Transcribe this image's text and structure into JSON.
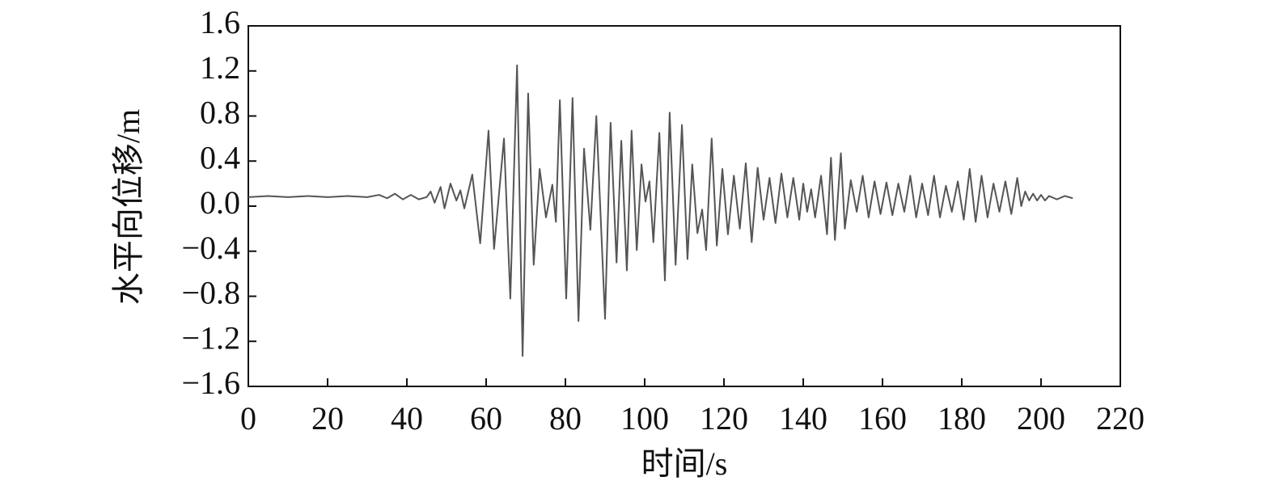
{
  "chart_data": {
    "type": "line",
    "xlabel": "时间/s",
    "ylabel": "水平向位移/m",
    "xlim": [
      0,
      220
    ],
    "xticks": [
      0,
      20,
      40,
      60,
      80,
      100,
      120,
      140,
      160,
      180,
      200,
      220
    ],
    "ylim": [
      -1.6,
      1.6
    ],
    "yticks": [
      1.6,
      1.2,
      0.8,
      0.4,
      {
        "value": 0,
        "label": "0.0"
      },
      {
        "value": -0.4,
        "label": "−0.4"
      },
      {
        "value": -0.8,
        "label": "−0.8"
      },
      {
        "value": -1.2,
        "label": "−1.2"
      },
      {
        "value": -1.6,
        "label": "−1.6"
      }
    ],
    "color": "#555555",
    "x": [
      0,
      5,
      10,
      15,
      20,
      25,
      30,
      33,
      35,
      37,
      39,
      41,
      43,
      45,
      46,
      47,
      48.5,
      49.5,
      51,
      52.5,
      53.5,
      54.5,
      56.5,
      58.5,
      60.6,
      62,
      64.5,
      66.1,
      67.8,
      69.2,
      70.6,
      72,
      73.5,
      75.1,
      76.7,
      77.6,
      78.6,
      80.2,
      81.8,
      83.3,
      84.7,
      86.3,
      87.8,
      90,
      91.4,
      92.9,
      94.1,
      95.5,
      96.7,
      98,
      99.2,
      100.2,
      101.2,
      102.2,
      103.7,
      105.1,
      106.3,
      107.8,
      109.4,
      110.8,
      112,
      113.3,
      114.5,
      115.5,
      116.9,
      118.2,
      119.6,
      121,
      122.5,
      124,
      125.5,
      127,
      128.5,
      130,
      131.5,
      133,
      134.5,
      136,
      137.5,
      139,
      140,
      141,
      142,
      143,
      144.5,
      146,
      147,
      148,
      149.5,
      150.5,
      152,
      153.5,
      155,
      156.5,
      158,
      159.5,
      161,
      162.5,
      164,
      165.5,
      167,
      168.5,
      170,
      171.5,
      173,
      174.5,
      176,
      177.5,
      179,
      180.5,
      182,
      183.5,
      185,
      186.5,
      188,
      189.5,
      191,
      192.5,
      194,
      195,
      196,
      197,
      198,
      199,
      200,
      201,
      202,
      204,
      206,
      208
    ],
    "values": [
      0.08,
      0.09,
      0.08,
      0.09,
      0.08,
      0.09,
      0.08,
      0.1,
      0.07,
      0.11,
      0.06,
      0.1,
      0.06,
      0.08,
      0.13,
      0.03,
      0.17,
      -0.02,
      0.2,
      0.05,
      0.14,
      -0.02,
      0.28,
      -0.33,
      0.67,
      -0.38,
      0.6,
      -0.82,
      1.25,
      -1.33,
      1.0,
      -0.52,
      0.33,
      -0.1,
      0.19,
      -0.14,
      0.94,
      -0.82,
      0.96,
      -1.02,
      0.51,
      -0.21,
      0.8,
      -1.0,
      0.74,
      -0.5,
      0.58,
      -0.57,
      0.67,
      -0.39,
      0.37,
      0.04,
      0.22,
      -0.32,
      0.65,
      -0.66,
      0.83,
      -0.52,
      0.72,
      -0.47,
      0.37,
      -0.24,
      -0.03,
      -0.39,
      0.6,
      -0.35,
      0.33,
      -0.25,
      0.27,
      -0.2,
      0.38,
      -0.32,
      0.34,
      -0.12,
      0.25,
      -0.15,
      0.29,
      -0.1,
      0.25,
      -0.12,
      0.2,
      -0.05,
      0.15,
      -0.1,
      0.27,
      -0.25,
      0.43,
      -0.3,
      0.47,
      -0.2,
      0.23,
      -0.05,
      0.27,
      -0.1,
      0.22,
      -0.07,
      0.21,
      -0.08,
      0.2,
      -0.05,
      0.27,
      -0.1,
      0.2,
      -0.08,
      0.27,
      -0.1,
      0.18,
      -0.05,
      0.22,
      -0.12,
      0.33,
      -0.14,
      0.27,
      -0.1,
      0.2,
      -0.05,
      0.22,
      -0.07,
      0.25,
      0.0,
      0.13,
      0.05,
      0.11,
      0.05,
      0.1,
      0.05,
      0.09,
      0.06,
      0.09,
      0.07
    ]
  }
}
